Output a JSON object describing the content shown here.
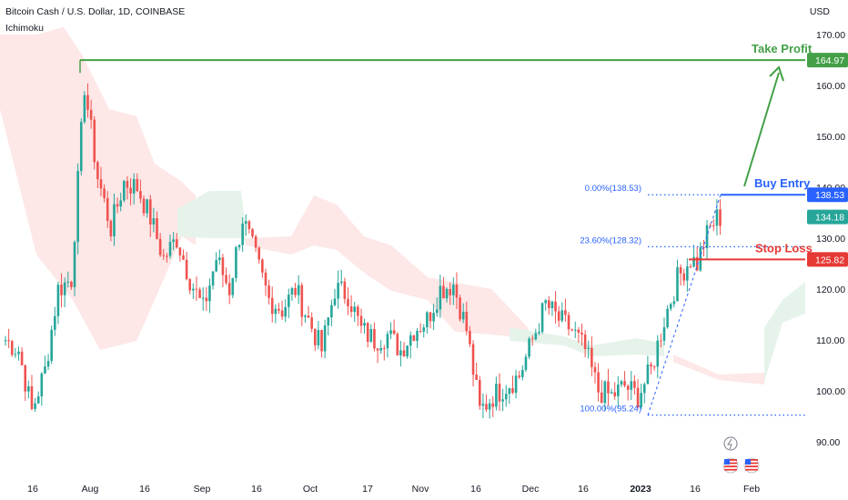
{
  "header": {
    "title": "Bitcoin Cash / U.S. Dollar, 1D, COINBASE",
    "indicator": "Ichimoku",
    "currency": "USD"
  },
  "colors": {
    "up": "#26a69a",
    "down": "#ef5350",
    "green_line": "#43a047",
    "blue_line": "#2962ff",
    "red_line": "#e53935",
    "cloud_red": "#fde7e7",
    "cloud_green": "#e6f3ea",
    "fib": "#2962ff"
  },
  "chart_data": {
    "type": "candlestick",
    "ylim": [
      85,
      175
    ],
    "y_ticks": [
      "90.00",
      "100.00",
      "110.00",
      "120.00",
      "130.00",
      "140.00",
      "150.00",
      "160.00",
      "170.00"
    ],
    "x_ticks": [
      "16",
      "Aug",
      "16",
      "Sep",
      "16",
      "Oct",
      "17",
      "Nov",
      "16",
      "Dec",
      "16",
      "2023",
      "16",
      "Feb"
    ],
    "levels": {
      "take_profit": {
        "label": "Take Profit",
        "price": "164.97"
      },
      "buy_entry": {
        "label": "Buy Entry",
        "price": "138.53"
      },
      "stop_loss": {
        "label": "Stop Loss",
        "price": "125.82"
      },
      "last_price": "134.18"
    },
    "fib_labels": [
      "0.00%(138.53)",
      "23.60%(128.32)",
      "100.00%(95.24)"
    ],
    "price_path": [
      [
        0,
        110
      ],
      [
        4,
        108
      ],
      [
        8,
        96
      ],
      [
        12,
        104
      ],
      [
        16,
        120
      ],
      [
        20,
        122
      ],
      [
        24,
        160
      ],
      [
        28,
        142
      ],
      [
        32,
        132
      ],
      [
        36,
        141
      ],
      [
        40,
        140
      ],
      [
        44,
        134
      ],
      [
        48,
        126
      ],
      [
        52,
        130
      ],
      [
        56,
        122
      ],
      [
        60,
        116
      ],
      [
        64,
        126
      ],
      [
        68,
        120
      ],
      [
        72,
        134
      ],
      [
        76,
        126
      ],
      [
        80,
        118
      ],
      [
        84,
        116
      ],
      [
        88,
        120
      ],
      [
        92,
        114
      ],
      [
        96,
        108
      ],
      [
        100,
        120
      ],
      [
        104,
        119
      ],
      [
        108,
        112
      ],
      [
        112,
        110
      ],
      [
        116,
        111
      ],
      [
        120,
        108
      ],
      [
        124,
        112
      ],
      [
        128,
        114
      ],
      [
        132,
        120
      ],
      [
        136,
        121
      ],
      [
        140,
        112
      ],
      [
        144,
        96
      ],
      [
        148,
        99
      ],
      [
        152,
        101
      ],
      [
        156,
        103
      ],
      [
        160,
        110
      ],
      [
        164,
        117
      ],
      [
        168,
        114
      ],
      [
        172,
        112
      ],
      [
        176,
        108
      ],
      [
        180,
        100
      ],
      [
        184,
        99
      ],
      [
        188,
        101
      ],
      [
        192,
        99
      ],
      [
        196,
        104
      ],
      [
        200,
        114
      ],
      [
        204,
        122
      ],
      [
        208,
        126
      ],
      [
        210,
        125
      ],
      [
        212,
        129
      ],
      [
        214,
        132
      ],
      [
        216,
        134
      ]
    ]
  }
}
